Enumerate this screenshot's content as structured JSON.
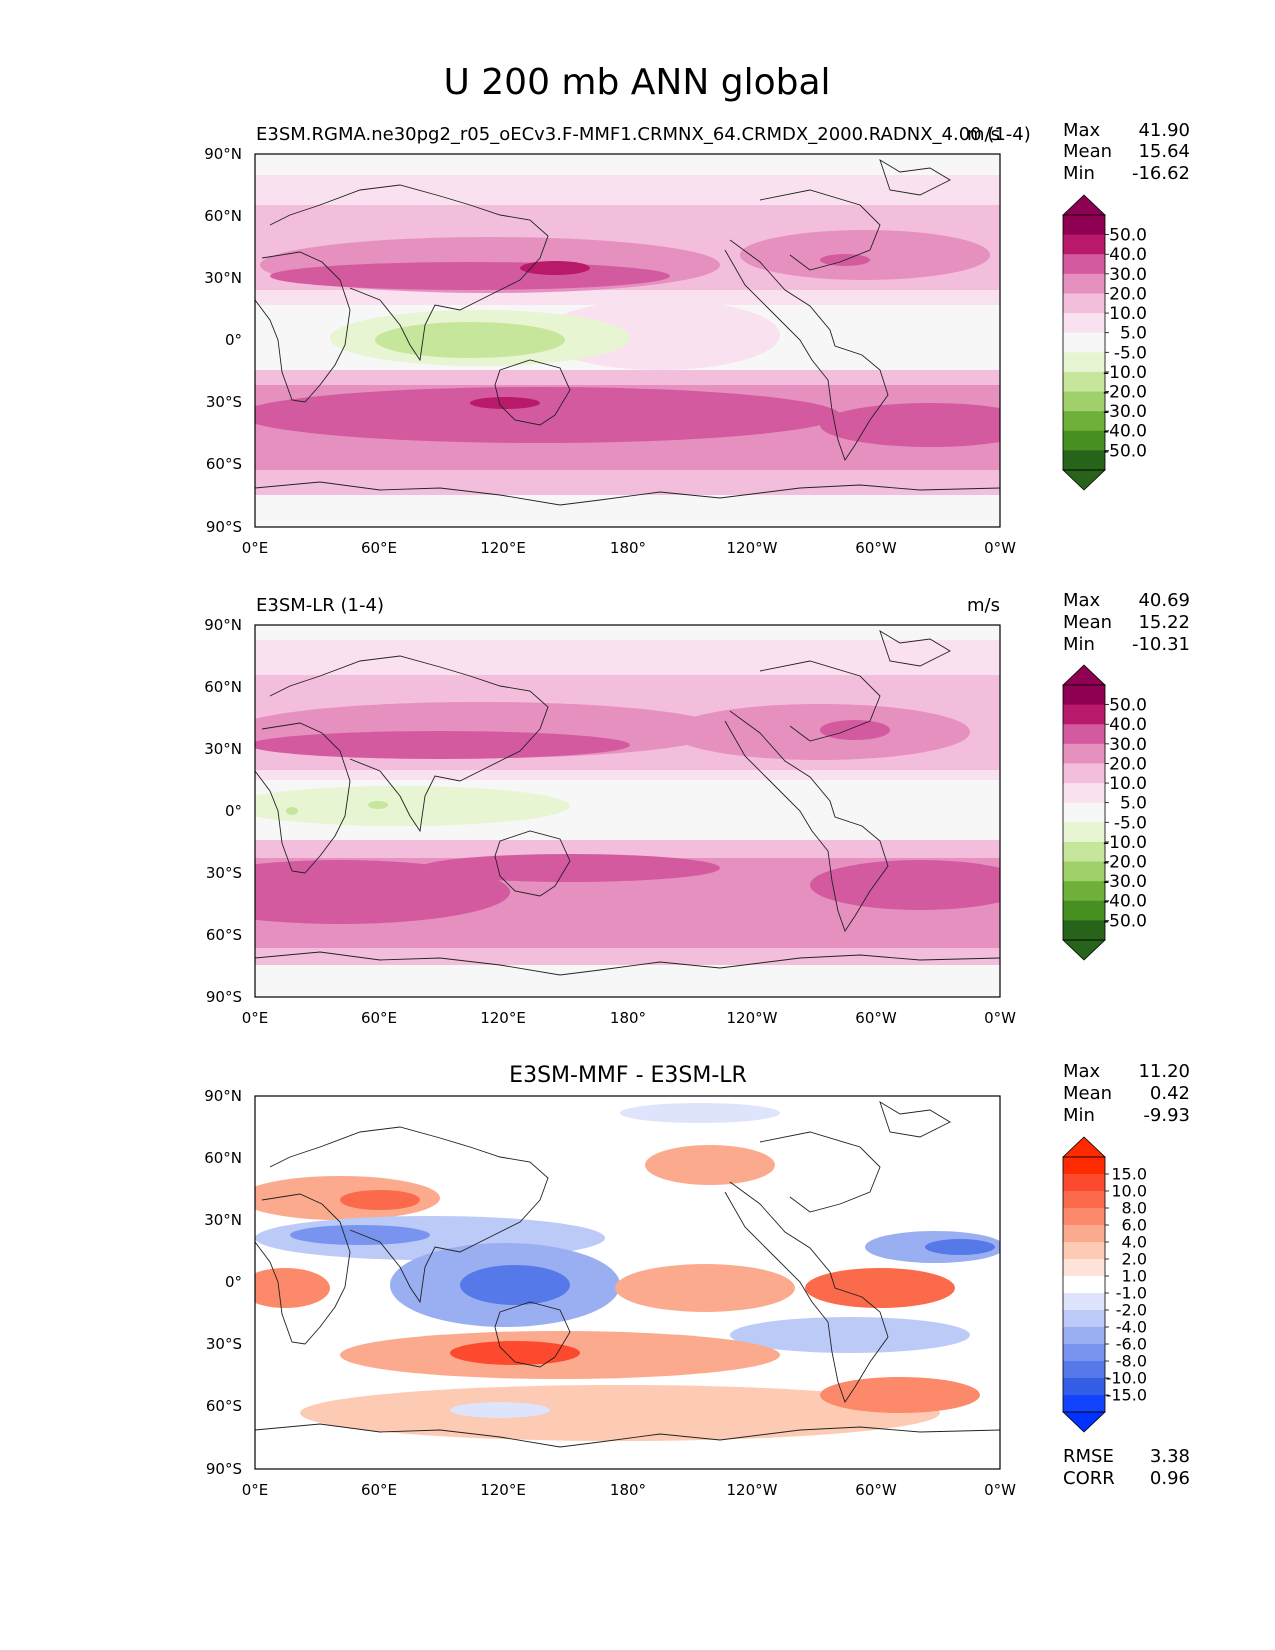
{
  "title": "U 200 mb ANN global",
  "lat_ticks": [
    "90°N",
    "60°N",
    "30°N",
    "0°",
    "30°S",
    "60°S",
    "90°S"
  ],
  "lon_ticks": [
    "0°E",
    "60°E",
    "120°E",
    "180°",
    "120°W",
    "60°W",
    "0°W"
  ],
  "panels": [
    {
      "id": "test",
      "title_left": "E3SM.RGMA.ne30pg2_r05_oECv3.F-MMF1.CRMNX_64.CRMDX_2000.RADNX_4.00 (1-4)",
      "title_center": "",
      "units": "m/s",
      "stats": [
        {
          "label": "Max",
          "value": "41.90"
        },
        {
          "label": "Mean",
          "value": "15.64"
        },
        {
          "label": "Min",
          "value": "-16.62"
        }
      ],
      "colorbar": {
        "labels": [
          "50.0",
          "40.0",
          "30.0",
          "20.0",
          "10.0",
          "5.0",
          "-5.0",
          "-10.0",
          "-20.0",
          "-30.0",
          "-40.0",
          "-50.0"
        ],
        "colors": [
          "#8e0152",
          "#b8196b",
          "#d45aa0",
          "#e690c0",
          "#f3bedc",
          "#fae1ef",
          "#f7f7f7",
          "#e7f5d2",
          "#c6e79b",
          "#9fd06a",
          "#6fb03a",
          "#478f20",
          "#276419"
        ],
        "top_color": "#8e0152",
        "bottom_color": "#276419"
      },
      "extra_stats": []
    },
    {
      "id": "reference",
      "title_left": "E3SM-LR (1-4)",
      "title_center": "",
      "units": "m/s",
      "stats": [
        {
          "label": "Max",
          "value": "40.69"
        },
        {
          "label": "Mean",
          "value": "15.22"
        },
        {
          "label": "Min",
          "value": "-10.31"
        }
      ],
      "colorbar": {
        "labels": [
          "50.0",
          "40.0",
          "30.0",
          "20.0",
          "10.0",
          "5.0",
          "-5.0",
          "-10.0",
          "-20.0",
          "-30.0",
          "-40.0",
          "-50.0"
        ],
        "colors": [
          "#8e0152",
          "#b8196b",
          "#d45aa0",
          "#e690c0",
          "#f3bedc",
          "#fae1ef",
          "#f7f7f7",
          "#e7f5d2",
          "#c6e79b",
          "#9fd06a",
          "#6fb03a",
          "#478f20",
          "#276419"
        ],
        "top_color": "#8e0152",
        "bottom_color": "#276419"
      },
      "extra_stats": []
    },
    {
      "id": "difference",
      "title_left": "",
      "title_center": "E3SM-MMF - E3SM-LR",
      "units": "",
      "stats": [
        {
          "label": "Max",
          "value": "11.20"
        },
        {
          "label": "Mean",
          "value": "0.42"
        },
        {
          "label": "Min",
          "value": "-9.93"
        }
      ],
      "colorbar": {
        "labels": [
          "15.0",
          "10.0",
          "8.0",
          "6.0",
          "4.0",
          "2.0",
          "1.0",
          "-1.0",
          "-2.0",
          "-4.0",
          "-6.0",
          "-8.0",
          "-10.0",
          "-15.0"
        ],
        "colors": [
          "#fe2a00",
          "#fd4a2e",
          "#fb6a4a",
          "#fc8a6a",
          "#fcaa8e",
          "#fdcab4",
          "#fee4d8",
          "#ffffff",
          "#dde4fb",
          "#bccaf7",
          "#9aaff2",
          "#7894ee",
          "#5679ea",
          "#345ee5",
          "#1243ff"
        ],
        "top_color": "#ff2a00",
        "bottom_color": "#0033ff"
      },
      "extra_stats": [
        {
          "label": "RMSE",
          "value": "3.38"
        },
        {
          "label": "CORR",
          "value": "0.96"
        }
      ]
    }
  ]
}
